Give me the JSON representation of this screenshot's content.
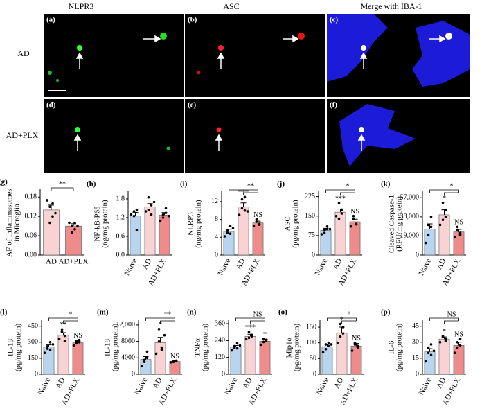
{
  "images": {
    "columns": [
      "NLPR3",
      "ASC",
      "Merge with IBA-1"
    ],
    "rows": [
      "AD",
      "AD+PLX"
    ],
    "panels": [
      "(a)",
      "(b)",
      "(c)",
      "(d)",
      "(e)",
      "(f)"
    ]
  },
  "chart_data": [
    {
      "type": "bar",
      "label": "(g)",
      "ylabel": [
        "AF of inflammasomes",
        "in Microglia"
      ],
      "categories": [
        "AD",
        "AD+PLX"
      ],
      "colors": [
        "#f9d3d3",
        "#ee8b8b"
      ],
      "values": [
        0.14,
        0.09
      ],
      "errors": [
        0.015,
        0.007
      ],
      "points": [
        [
          0.17,
          0.15,
          0.12,
          0.1,
          0.16,
          0.13
        ],
        [
          0.1,
          0.09,
          0.08,
          0.07,
          0.1,
          0.09
        ]
      ],
      "ylim": [
        0,
        0.2
      ],
      "yticks": [
        {
          "value": 0,
          "label": "0.00"
        },
        0.06,
        0.12,
        0.18
      ],
      "annotations": [
        {
          "text": "**",
          "from": "AD",
          "to": "AD+PLX"
        }
      ]
    },
    {
      "type": "bar",
      "label": "(h)",
      "ylabel": [
        "NF-kB-P65",
        "(ng/mg protein)"
      ],
      "categories": [
        "Naive",
        "AD",
        "AD+PLX"
      ],
      "colors": [
        "#b8d4ee",
        "#f9d3d3",
        "#ee8b8b"
      ],
      "values": [
        1.25,
        1.55,
        1.28
      ],
      "errors": [
        0.12,
        0.1,
        0.08
      ],
      "points": [
        [
          1.3,
          1.4,
          0.8,
          1.25,
          1.45
        ],
        [
          1.4,
          1.85,
          1.6,
          1.45,
          1.3,
          1.7
        ],
        [
          1.1,
          1.3,
          1.5,
          1.2,
          1.35,
          1.25
        ]
      ],
      "ylim": [
        0,
        2.0
      ],
      "yticks": [
        {
          "value": 0,
          "label": "0.0"
        },
        0.6,
        1.2,
        1.8
      ],
      "annotations": []
    },
    {
      "type": "bar",
      "label": "(i)",
      "ylabel": [
        "NLRP3",
        "(ng/mg protein)"
      ],
      "categories": [
        "Naive",
        "AD",
        "AD+PLX"
      ],
      "colors": [
        "#b8d4ee",
        "#f9d3d3",
        "#ee8b8b"
      ],
      "values": [
        5.3,
        10.8,
        7.2
      ],
      "errors": [
        0.5,
        0.9,
        0.4
      ],
      "points": [
        [
          4.2,
          5.0,
          6.5,
          5.5,
          4.8,
          6.0
        ],
        [
          9.0,
          10.5,
          13.0,
          12.5,
          10.0,
          9.8
        ],
        [
          6.5,
          7.5,
          7.0,
          8.0,
          6.8
        ]
      ],
      "ylim": [
        0,
        14
      ],
      "yticks": [
        0,
        4,
        8,
        12
      ],
      "annotations": [
        {
          "text": "***",
          "at": "AD"
        },
        {
          "text": "NS",
          "at": "AD+PLX"
        },
        {
          "text": "**",
          "from": "Naive",
          "to": "AD+PLX"
        }
      ]
    },
    {
      "type": "bar",
      "label": "(j)",
      "ylabel": [
        "ASC",
        "(pg/mg protein)"
      ],
      "categories": [
        "Naive",
        "AD",
        "AD+PLX"
      ],
      "colors": [
        "#b8d4ee",
        "#f9d3d3",
        "#ee8b8b"
      ],
      "values": [
        95,
        165,
        128
      ],
      "errors": [
        8,
        12,
        10
      ],
      "points": [
        [
          80,
          95,
          110,
          85,
          100,
          100
        ],
        [
          150,
          200,
          160,
          140,
          175
        ],
        [
          110,
          140,
          120,
          150,
          118
        ]
      ],
      "ylim": [
        0,
        240
      ],
      "yticks": [
        0,
        75,
        150,
        225
      ],
      "annotations": [
        {
          "text": "***",
          "at": "AD"
        },
        {
          "text": "NS",
          "at": "AD+PLX"
        },
        {
          "text": "*",
          "from": "Naive",
          "to": "AD+PLX"
        }
      ]
    },
    {
      "type": "bar",
      "label": "(k)",
      "ylabel": [
        "Cleaved Caspase-1",
        "(RFU/mg protein)"
      ],
      "categories": [
        "Naive",
        "AD",
        "AD+PLX"
      ],
      "colors": [
        "#b8d4ee",
        "#f9d3d3",
        "#ee8b8b"
      ],
      "values": [
        26000,
        40000,
        23000
      ],
      "errors": [
        5000,
        5000,
        2500
      ],
      "points": [
        [
          12000,
          30000,
          38000,
          20000,
          28000
        ],
        [
          30000,
          52000,
          45000,
          35000,
          38000
        ],
        [
          18000,
          25000,
          22000,
          28000,
          20000
        ]
      ],
      "ylim": [
        0,
        62000
      ],
      "yticks": [
        0,
        {
          "value": 19000,
          "label": "19,000"
        },
        {
          "value": 38000,
          "label": "38,000"
        },
        {
          "value": 57000,
          "label": "57,000"
        }
      ],
      "annotations": [
        {
          "text": "*",
          "at": "AD"
        },
        {
          "text": "NS",
          "at": "AD+PLX"
        },
        {
          "text": "*",
          "from": "Naive",
          "to": "AD+PLX"
        }
      ]
    },
    {
      "type": "bar",
      "label": "(l)",
      "ylabel": [
        "IL-1β",
        "(pg/mg protein)"
      ],
      "categories": [
        "Naive",
        "AD",
        "AD+PLX"
      ],
      "colors": [
        "#b8d4ee",
        "#f9d3d3",
        "#ee8b8b"
      ],
      "values": [
        255,
        365,
        295
      ],
      "errors": [
        20,
        25,
        15
      ],
      "points": [
        [
          200,
          240,
          300,
          260,
          230,
          280
        ],
        [
          330,
          420,
          360,
          400,
          310
        ],
        [
          270,
          310,
          300,
          290,
          320
        ]
      ],
      "ylim": [
        0,
        500
      ],
      "yticks": [
        0,
        150,
        300,
        450
      ],
      "annotations": [
        {
          "text": "**",
          "at": "AD"
        },
        {
          "text": "NS",
          "at": "AD+PLX"
        },
        {
          "text": "*",
          "from": "Naive",
          "to": "AD+PLX"
        }
      ]
    },
    {
      "type": "bar",
      "label": "(m)",
      "ylabel": [
        "IL-18",
        "(pg/mg protein)"
      ],
      "categories": [
        "Naive",
        "AD",
        "AD+PLX"
      ],
      "colors": [
        "#b8d4ee",
        "#f9d3d3",
        "#ee8b8b"
      ],
      "values": [
        3600,
        7700,
        3100
      ],
      "errors": [
        700,
        1300,
        150
      ],
      "points": [
        [
          2000,
          3500,
          5500,
          3000,
          4000
        ],
        [
          5000,
          11000,
          6500,
          8000,
          6000,
          9500
        ],
        [
          2900,
          3100,
          3300,
          3000,
          3200
        ]
      ],
      "ylim": [
        0,
        13000
      ],
      "yticks": [
        0,
        4000,
        8000,
        {
          "value": 12000,
          "label": "12,000"
        }
      ],
      "annotations": [
        {
          "text": "*",
          "at": "AD"
        },
        {
          "text": "NS",
          "at": "AD+PLX"
        },
        {
          "text": "**",
          "from": "Naive",
          "to": "AD+PLX"
        }
      ]
    },
    {
      "type": "bar",
      "label": "(n)",
      "ylabel": [
        "TNFα",
        "(pg/mg protein)"
      ],
      "categories": [
        "Naive",
        "AD",
        "AD+PLX"
      ],
      "colors": [
        "#b8d4ee",
        "#f9d3d3",
        "#ee8b8b"
      ],
      "values": [
        195,
        270,
        235
      ],
      "errors": [
        10,
        15,
        15
      ],
      "points": [
        [
          170,
          200,
          220,
          190,
          185,
          205
        ],
        [
          250,
          300,
          270,
          260,
          280
        ],
        [
          210,
          250,
          240,
          230,
          245
        ]
      ],
      "ylim": [
        0,
        380
      ],
      "yticks": [
        0,
        120,
        240,
        360
      ],
      "annotations": [
        {
          "text": "***",
          "at": "AD"
        },
        {
          "text": "*",
          "at": "AD+PLX"
        },
        {
          "text": "NS",
          "from": "Naive",
          "to": "AD+PLX"
        }
      ]
    },
    {
      "type": "bar",
      "label": "(o)",
      "ylabel": [
        "Mip1α",
        "(pg/mg protein)"
      ],
      "categories": [
        "Naive",
        "AD",
        "AD+PLX"
      ],
      "colors": [
        "#b8d4ee",
        "#f9d3d3",
        "#ee8b8b"
      ],
      "values": [
        88,
        132,
        90
      ],
      "errors": [
        8,
        18,
        8
      ],
      "points": [
        [
          70,
          95,
          100,
          80,
          90,
          95
        ],
        [
          100,
          160,
          150,
          120,
          130
        ],
        [
          75,
          100,
          90,
          95,
          85
        ]
      ],
      "ylim": [
        0,
        170
      ],
      "yticks": [
        0,
        50,
        100,
        150
      ],
      "annotations": [
        {
          "text": "*",
          "at": "AD"
        },
        {
          "text": "NS",
          "at": "AD+PLX"
        },
        {
          "text": "*",
          "from": "Naive",
          "to": "AD+PLX"
        }
      ]
    },
    {
      "type": "bar",
      "label": "(p)",
      "ylabel": [
        "IL-6",
        "(pg/mg protein)"
      ],
      "categories": [
        "Naive",
        "AD",
        "AD+PLX"
      ],
      "colors": [
        "#b8d4ee",
        "#f9d3d3",
        "#ee8b8b"
      ],
      "values": [
        21,
        33,
        27
      ],
      "errors": [
        3,
        2,
        3
      ],
      "points": [
        [
          12,
          20,
          28,
          25,
          18,
          22
        ],
        [
          30,
          36,
          33,
          35,
          31
        ],
        [
          20,
          30,
          33,
          25,
          27
        ]
      ],
      "ylim": [
        0,
        50
      ],
      "yticks": [
        0,
        15,
        30,
        45
      ],
      "annotations": [
        {
          "text": "*",
          "at": "AD"
        },
        {
          "text": "NS",
          "at": "AD+PLX"
        },
        {
          "text": "NS",
          "from": "Naive",
          "to": "AD+PLX"
        }
      ]
    }
  ]
}
